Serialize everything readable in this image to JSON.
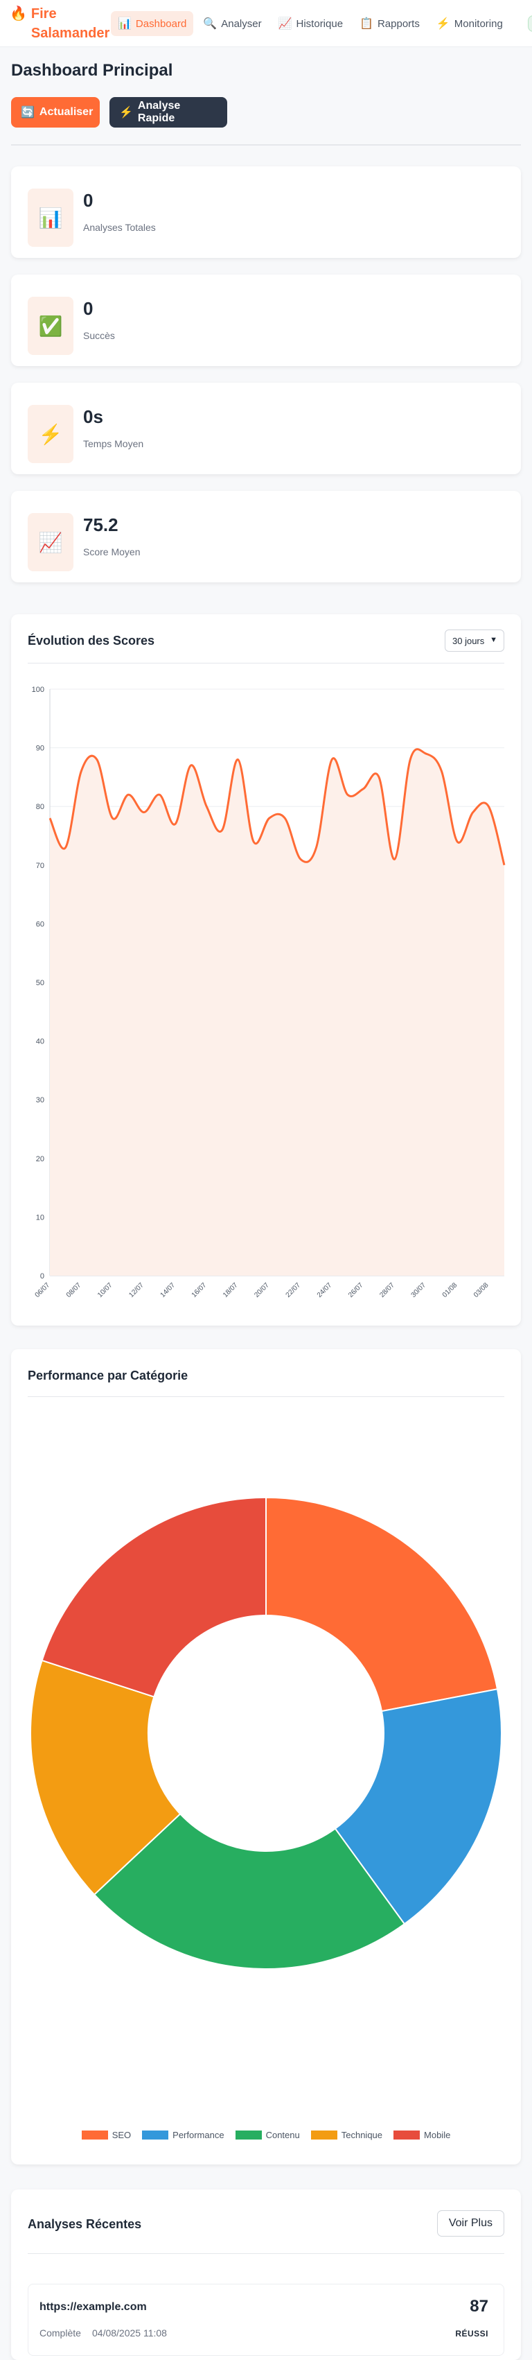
{
  "brand": {
    "name": "Fire Salamander",
    "icon": "fire-icon"
  },
  "nav": [
    {
      "label": "Dashboard",
      "icon": "📊",
      "active": true
    },
    {
      "label": "Analyser",
      "icon": "🔍",
      "active": false
    },
    {
      "label": "Historique",
      "icon": "📈",
      "active": false
    },
    {
      "label": "Rapports",
      "icon": "📋",
      "active": false
    },
    {
      "label": "Monitoring",
      "icon": "⚡",
      "active": false
    }
  ],
  "page": {
    "title": "Dashboard Principal"
  },
  "actions": {
    "refresh_label": "Actualiser",
    "refresh_icon": "🔄",
    "quick_label": "Analyse Rapide",
    "quick_icon": "⚡"
  },
  "stats": [
    {
      "value": "0",
      "label": "Analyses Totales",
      "icon": "📊"
    },
    {
      "value": "0",
      "label": "Succès",
      "icon": "✅"
    },
    {
      "value": "0s",
      "label": "Temps Moyen",
      "icon": "⚡"
    },
    {
      "value": "75.2",
      "label": "Score Moyen",
      "icon": "📈"
    }
  ],
  "scores_panel": {
    "title": "Évolution des Scores",
    "range_value": "30 jours"
  },
  "categories_panel": {
    "title": "Performance par Catégorie"
  },
  "recent": {
    "title": "Analyses Récentes",
    "view_more": "Voir Plus",
    "items": [
      {
        "url": "https://example.com",
        "status": "Complète",
        "date": "04/08/2025 11:08",
        "score": "87",
        "badge": "RÉUSSI"
      }
    ]
  },
  "colors": {
    "accent": "#ff6b35",
    "dark_button": "#2d3748"
  },
  "chart_data": [
    {
      "type": "area",
      "title": "Évolution des Scores",
      "ylim": [
        0,
        100
      ],
      "yticks": [
        0,
        10,
        20,
        30,
        40,
        50,
        60,
        70,
        80,
        90,
        100
      ],
      "grid": true,
      "line_color": "#ff6b35",
      "fill_color": "#fdf0ea",
      "x": [
        "06/07",
        "07/07",
        "08/07",
        "09/07",
        "10/07",
        "11/07",
        "12/07",
        "13/07",
        "14/07",
        "15/07",
        "16/07",
        "17/07",
        "18/07",
        "19/07",
        "20/07",
        "21/07",
        "22/07",
        "23/07",
        "24/07",
        "25/07",
        "26/07",
        "27/07",
        "28/07",
        "29/07",
        "30/07",
        "31/07",
        "01/08",
        "02/08",
        "03/08",
        "04/08"
      ],
      "xtick_labels": [
        "06/07",
        "08/07",
        "10/07",
        "12/07",
        "14/07",
        "16/07",
        "18/07",
        "20/07",
        "22/07",
        "24/07",
        "26/07",
        "28/07",
        "30/07",
        "01/08",
        "03/08"
      ],
      "values": [
        78,
        73,
        86,
        88,
        78,
        82,
        79,
        82,
        77,
        87,
        80,
        76,
        88,
        74,
        78,
        78,
        71,
        73,
        88,
        82,
        83,
        85,
        71,
        88,
        89,
        86,
        74,
        79,
        80,
        70
      ]
    },
    {
      "type": "pie",
      "title": "Performance par Catégorie",
      "donut": true,
      "legend_position": "bottom",
      "series": [
        {
          "name": "SEO",
          "value": 22,
          "color": "#ff6b35"
        },
        {
          "name": "Performance",
          "value": 18,
          "color": "#3498db"
        },
        {
          "name": "Contenu",
          "value": 23,
          "color": "#27ae60"
        },
        {
          "name": "Technique",
          "value": 17,
          "color": "#f39c12"
        },
        {
          "name": "Mobile",
          "value": 20,
          "color": "#e74c3c"
        }
      ]
    }
  ]
}
